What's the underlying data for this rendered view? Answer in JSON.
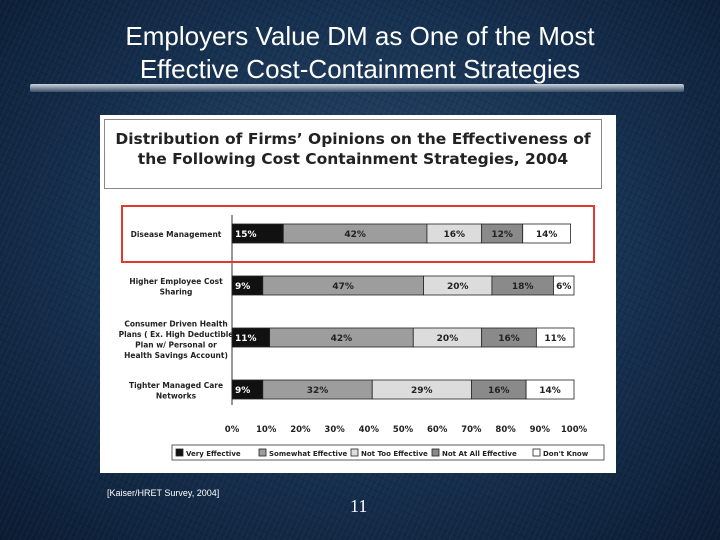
{
  "slide": {
    "title_line1": "Employers Value DM as One of the Most",
    "title_line2": "Effective Cost-Containment Strategies",
    "source": "[Kaiser/HRET Survey, 2004]",
    "page_number": "11"
  },
  "chart_data": {
    "type": "bar",
    "stacked": "percent",
    "orientation": "horizontal",
    "title_line1": "Distribution of Firms’ Opinions on the Effectiveness of",
    "title_line2": "the Following Cost Containment Strategies, 2004",
    "categories": [
      [
        "Disease Management"
      ],
      [
        "Higher Employee Cost",
        "Sharing"
      ],
      [
        "Consumer Driven Health",
        "Plans ( Ex. High Deductible",
        "Plan w/ Personal or",
        "Health Savings Account)"
      ],
      [
        "Tighter Managed Care",
        "Networks"
      ]
    ],
    "series": [
      {
        "name": "Very Effective",
        "color": "#111111",
        "label_color": "#ffffff",
        "values": [
          15,
          9,
          11,
          9
        ]
      },
      {
        "name": "Somewhat Effective",
        "color": "#9d9d9d",
        "label_color": "#222222",
        "values": [
          42,
          47,
          42,
          32
        ]
      },
      {
        "name": "Not Too Effective",
        "color": "#dcdcdc",
        "label_color": "#222222",
        "values": [
          16,
          20,
          20,
          29
        ]
      },
      {
        "name": "Not At All Effective",
        "color": "#8a8a8a",
        "label_color": "#222222",
        "values": [
          12,
          18,
          16,
          16
        ]
      },
      {
        "name": "Don't Know",
        "color": "#ffffff",
        "label_color": "#222222",
        "values": [
          14,
          6,
          11,
          14
        ]
      }
    ],
    "value_suffix": "%",
    "xlim": [
      0,
      100
    ],
    "xticks": [
      "0%",
      "10%",
      "20%",
      "30%",
      "40%",
      "50%",
      "60%",
      "70%",
      "80%",
      "90%",
      "100%"
    ],
    "legend_position": "bottom",
    "highlighted_category_index": 0,
    "highlight_color": "#e03a2f"
  }
}
